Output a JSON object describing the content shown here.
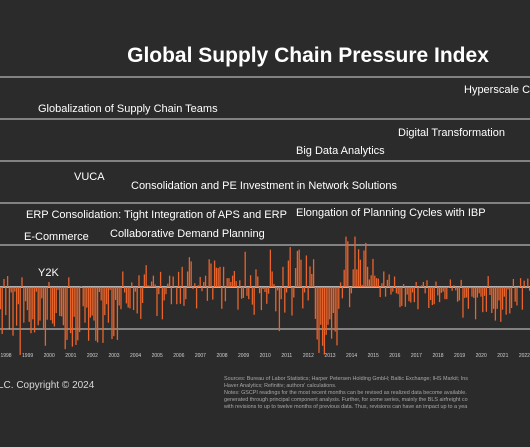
{
  "chart_data": {
    "type": "bar",
    "title": "Global Supply Chain Pressure Index",
    "x_tick_labels": [
      "1998",
      "1999",
      "2000",
      "2001",
      "2002",
      "2003",
      "2004",
      "2005",
      "2006",
      "2007",
      "2008",
      "2009",
      "2010",
      "2011",
      "2012",
      "2013",
      "2014",
      "2015",
      "2016",
      "2017",
      "2018",
      "2019",
      "2020",
      "2021",
      "2022"
    ],
    "annotations": [
      "Hyperscale Cl",
      "Globalization of Supply Chain Teams",
      "Digital Transformation",
      "Big Data Analytics",
      "VUCA",
      "Consolidation and PE Investment in Network Solutions",
      "ERP Consolidation: Tight Integration of APS and ERP",
      "Elongation of Planning Cycles with IBP",
      "E-Commerce",
      "Collaborative Demand Planning",
      "Y2K"
    ],
    "ylim": [
      -2.5,
      5.0
    ],
    "grid": "horizontal",
    "footer_left": "LC. Copyright © 2024",
    "sources_lines": [
      "Sources: Bureau of Labor Statistics; Harper Petersen Holding GmbH; Baltic Exchange; IHS Markit; Ins",
      "Haver Analytics; Refinitiv; authors' calculations.",
      "Notes: GSCPI readings for the most recent months can be revised as realized data become available.",
      "generated through principal component analysis. Further, for some series, mainly the BLS airfreight co",
      "with revisions to up to twelve months of previous data. Thus, revisions can have an impact up to a yea"
    ],
    "series": [
      {
        "x_start": 1997.5,
        "x_step": 0.08333,
        "values": [
          0.31,
          -1.02,
          0.1,
          -1.05,
          -0.53,
          -1.12,
          0.19,
          -0.67,
          0.26,
          -0.99,
          -0.13,
          -1.16,
          -0.11,
          -0.92,
          -0.41,
          -1.62,
          0.23,
          -0.85,
          -0.34,
          -0.55,
          -0.83,
          -1.1,
          -0.77,
          -1.08,
          -0.11,
          -0.91,
          -0.8,
          -0.27,
          -1.0,
          -1.4,
          -0.78,
          0.12,
          -0.79,
          -0.87,
          -0.94,
          -0.62,
          -0.07,
          -0.69,
          -0.7,
          -0.91,
          -1.48,
          -1.26,
          0.23,
          -1.1,
          -1.42,
          -0.71,
          -1.38,
          -1.27,
          -1.07,
          0.01,
          -0.46,
          -0.85,
          -0.49,
          -1.28,
          -0.73,
          -0.68,
          -0.8,
          -1.28,
          -1.32,
          -0.12,
          -0.32,
          -1.33,
          -0.67,
          -0.41,
          -0.85,
          -0.07,
          -1.24,
          -1.17,
          -0.31,
          -1.26,
          -0.44,
          -0.53,
          0.37,
          -0.13,
          -0.39,
          -0.49,
          -0.51,
          0.11,
          -0.55,
          -0.11,
          -0.63,
          0.28,
          -0.76,
          -0.38,
          0.3,
          0.52,
          0.04,
          0.03,
          0.13,
          0.27,
          0.06,
          -0.69,
          -0.17,
          0.36,
          -0.77,
          -0.32,
          -0.17,
          0.08,
          0.27,
          -0.41,
          0.25,
          0.0,
          -0.41,
          0.36,
          -0.4,
          0.48,
          -0.45,
          -0.29,
          0.37,
          0.71,
          0.61,
          -0.05,
          0.09,
          -0.51,
          0.04,
          0.24,
          -0.1,
          0.12,
          0.27,
          -0.33,
          0.66,
          0.56,
          -0.3,
          0.63,
          0.46,
          0.45,
          0.48,
          -0.52,
          0.48,
          -0.34,
          0.21,
          0.21,
          0.12,
          0.27,
          0.38,
          0.14,
          -0.54,
          0.16,
          -0.28,
          -0.26,
          0.84,
          -0.21,
          -0.29,
          0.28,
          -0.42,
          -0.66,
          0.42,
          0.25,
          -0.15,
          -0.55,
          -0.05,
          -0.12,
          -0.4,
          -0.16,
          0.89,
          0.37,
          0.07,
          -0.58,
          -0.08,
          -1.05,
          -0.29,
          0.48,
          -0.61,
          -0.13,
          0.63,
          0.95,
          -0.68,
          -0.25,
          0.45,
          0.86,
          0.89,
          0.65,
          -0.51,
          -0.13,
          0.75,
          -0.32,
          0.49,
          0.31,
          0.66,
          -0.76,
          -1.25,
          -1.57,
          -0.9,
          -1.4,
          -1.61,
          -1.14,
          -0.9,
          -0.77,
          -1.23,
          -0.62,
          -1.06,
          -1.39,
          -0.52,
          0.11,
          -0.27,
          0.41,
          1.2,
          1.09,
          -0.48,
          -0.15,
          0.42,
          1.2,
          0.42,
          0.9,
          0.65,
          0.05,
          0.87,
          1.05,
          0.48,
          0.18,
          0.28,
          0.67,
          0.27,
          0.21,
          0.2,
          -0.24,
          0.09,
          0.37,
          -0.23,
          0.17,
          0.3,
          -0.18,
          -0.11,
          0.25,
          -0.15,
          -0.17,
          -0.48,
          -0.45,
          0.07,
          -0.47,
          -0.18,
          -0.34,
          -0.37,
          -0.13,
          -0.36,
          0.12,
          -0.53,
          0.01,
          0.04,
          0.12,
          -0.15,
          0.16,
          -0.5,
          -0.31,
          -0.43,
          -0.41,
          0.13,
          -0.2,
          -0.36,
          -0.14,
          -0.11,
          -0.29,
          -0.29,
          -0.02,
          0.18,
          -0.09,
          0.04,
          -0.08,
          -0.35,
          -0.32,
          0.17,
          -0.73,
          -0.26,
          -0.25,
          -0.52,
          -0.03,
          -0.23,
          -0.26,
          -0.77,
          -0.25,
          -0.15,
          -0.23,
          -0.6,
          -0.21,
          -0.59,
          0.26,
          -0.19,
          -0.62,
          -0.52,
          -0.8,
          -0.52,
          -0.32,
          -0.83,
          -0.54,
          -0.23,
          -0.66,
          -0.06,
          -0.63,
          -0.5,
          0.19,
          -0.35,
          -0.44,
          -0.01,
          0.21,
          -0.54,
          0.15,
          -0.03,
          0.2,
          -0.09,
          -0.07,
          0.28,
          0.61,
          0.56,
          0.52,
          0.34,
          -0.02,
          -0.49,
          -0.03,
          -0.57,
          0.11,
          0.55,
          0.51,
          0.22,
          0.29,
          0.6,
          0.06,
          0.71,
          0.6,
          -0.04,
          0.24,
          -0.14,
          -0.21,
          -0.4,
          -0.37,
          -0.94,
          -0.37,
          -0.13,
          -0.6,
          -0.01,
          -0.18,
          -0.2,
          1.29,
          2.91,
          2.68,
          1.54,
          1.85,
          1.59,
          0.93,
          2.53,
          2.08,
          1.52,
          1.72,
          2.5,
          2.17,
          2.89,
          3.09,
          3.45,
          3.89,
          4.01,
          4.02,
          4.21,
          4.12,
          4.53,
          4.62,
          4.3,
          4.45,
          4.01,
          3.75,
          3.17,
          2.69,
          2.47,
          2.46,
          2.41,
          2.09,
          1.95,
          1.55,
          1.2,
          1.1
        ]
      }
    ]
  }
}
